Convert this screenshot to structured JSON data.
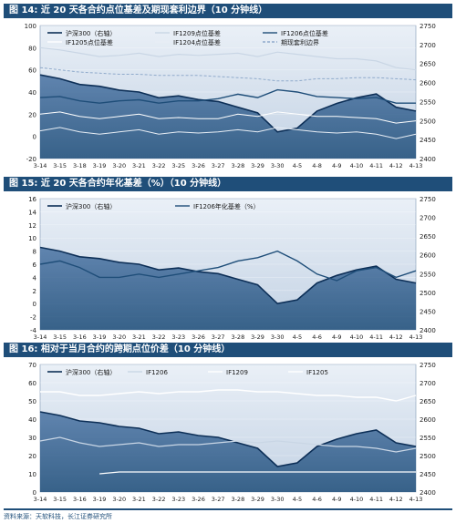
{
  "chart_data": [
    {
      "type": "line",
      "title": "图 14: 近 20 天各合约点位基差及期现套利边界（10 分钟线）",
      "ylim": [
        -20,
        100
      ],
      "yticks": [
        "100",
        "80",
        "60",
        "40",
        "20",
        "0",
        "-20"
      ],
      "y2lim": [
        2400,
        2750
      ],
      "y2ticks": [
        "2750",
        "2700",
        "2650",
        "2600",
        "2550",
        "2500",
        "2450",
        "2400"
      ],
      "categories": [
        "3-14",
        "3-15",
        "3-18",
        "3-19",
        "3-20",
        "3-21",
        "3-22",
        "3-25",
        "3-26",
        "3-27",
        "3-28",
        "3-29",
        "3-30",
        "4-5",
        "4-8",
        "4-9",
        "4-10",
        "4-11",
        "4-12",
        "4-13"
      ],
      "legend": [
        "沪深300（右轴）",
        "IF1209点位基差",
        "IF1206点位基差",
        "IF1205点位基差",
        "IF1204点位基差",
        "期现套利边界"
      ],
      "series": [
        {
          "name": "沪深300（右轴）",
          "axis": "right",
          "values": [
            2620,
            2610,
            2595,
            2590,
            2580,
            2575,
            2560,
            2565,
            2555,
            2550,
            2535,
            2520,
            2470,
            2480,
            2525,
            2545,
            2560,
            2570,
            2535,
            2525
          ]
        },
        {
          "name": "IF1209点位基差",
          "axis": "left",
          "values": [
            80,
            78,
            75,
            72,
            73,
            75,
            72,
            74,
            73,
            74,
            75,
            72,
            76,
            74,
            72,
            70,
            70,
            68,
            62,
            60
          ]
        },
        {
          "name": "IF1206点位基差",
          "axis": "left",
          "values": [
            35,
            36,
            32,
            30,
            32,
            33,
            30,
            32,
            32,
            34,
            38,
            35,
            42,
            40,
            36,
            35,
            34,
            35,
            30,
            30
          ]
        },
        {
          "name": "IF1205点位基差",
          "axis": "left",
          "values": [
            20,
            22,
            18,
            16,
            18,
            20,
            16,
            17,
            16,
            16,
            20,
            18,
            22,
            20,
            18,
            18,
            17,
            16,
            12,
            14
          ]
        },
        {
          "name": "IF1204点位基差",
          "axis": "left",
          "values": [
            5,
            8,
            4,
            2,
            4,
            6,
            2,
            4,
            3,
            4,
            6,
            4,
            8,
            6,
            4,
            3,
            4,
            2,
            -2,
            2
          ]
        },
        {
          "name": "期现套利边界",
          "axis": "left",
          "values": [
            62,
            60,
            58,
            57,
            56,
            56,
            55,
            55,
            55,
            54,
            53,
            52,
            50,
            50,
            52,
            52,
            53,
            53,
            52,
            51
          ]
        }
      ]
    },
    {
      "type": "line",
      "title": "图 15: 近 20 天各合约年化基差（%）（10 分钟线）",
      "ylim": [
        -4,
        16
      ],
      "yticks": [
        "16",
        "14",
        "12",
        "10",
        "8",
        "6",
        "4",
        "2",
        "0",
        "-2",
        "-4"
      ],
      "y2lim": [
        2400,
        2750
      ],
      "y2ticks": [
        "2750",
        "2700",
        "2650",
        "2600",
        "2550",
        "2500",
        "2450",
        "2400"
      ],
      "categories": [
        "3-14",
        "3-15",
        "3-16",
        "3-19",
        "3-20",
        "3-21",
        "3-22",
        "3-23",
        "3-26",
        "3-27",
        "3-28",
        "3-29",
        "3-30",
        "4-5",
        "4-6",
        "4-9",
        "4-10",
        "4-11",
        "4-12",
        "4-13"
      ],
      "legend": [
        "沪深300（右轴）",
        "IF1206年化基差（%）"
      ],
      "series": [
        {
          "name": "沪深300（右轴）",
          "axis": "right",
          "values": [
            2620,
            2610,
            2595,
            2590,
            2580,
            2575,
            2560,
            2565,
            2555,
            2550,
            2535,
            2520,
            2470,
            2480,
            2525,
            2545,
            2560,
            2570,
            2535,
            2525
          ]
        },
        {
          "name": "IF1206年化基差（%）",
          "axis": "left",
          "values": [
            6,
            6.5,
            5.5,
            4,
            4,
            4.5,
            4,
            4.5,
            5,
            5.5,
            6.5,
            7,
            8,
            6.5,
            4.5,
            3.5,
            5,
            5.5,
            4,
            5
          ]
        }
      ]
    },
    {
      "type": "line",
      "title": "图 16: 相对于当月合约的跨期点位价差（10 分钟线）",
      "ylim": [
        0,
        70
      ],
      "yticks": [
        "70",
        "60",
        "50",
        "40",
        "30",
        "20",
        "10",
        "0"
      ],
      "y2lim": [
        2400,
        2750
      ],
      "y2ticks": [
        "2750",
        "2700",
        "2650",
        "2600",
        "2550",
        "2500",
        "2450",
        "2400"
      ],
      "categories": [
        "3-14",
        "3-15",
        "3-16",
        "3-19",
        "3-20",
        "3-21",
        "3-22",
        "3-23",
        "3-26",
        "3-27",
        "3-28",
        "3-29",
        "3-30",
        "4-5",
        "4-6",
        "4-9",
        "4-10",
        "4-11",
        "4-12",
        "4-13"
      ],
      "legend": [
        "沪深300（右轴）",
        "IF1206",
        "IF1209",
        "IF1205"
      ],
      "series": [
        {
          "name": "沪深300（右轴）",
          "axis": "right",
          "values": [
            2620,
            2610,
            2595,
            2590,
            2580,
            2575,
            2560,
            2565,
            2555,
            2550,
            2535,
            2520,
            2470,
            2480,
            2525,
            2545,
            2560,
            2570,
            2535,
            2525
          ]
        },
        {
          "name": "IF1206",
          "axis": "left",
          "values": [
            28,
            30,
            27,
            25,
            26,
            27,
            25,
            26,
            26,
            27,
            28,
            27,
            28,
            27,
            26,
            25,
            25,
            24,
            22,
            24
          ]
        },
        {
          "name": "IF1209",
          "axis": "left",
          "values": [
            55,
            55,
            53,
            53,
            54,
            55,
            54,
            55,
            55,
            56,
            56,
            55,
            55,
            54,
            53,
            53,
            52,
            52,
            50,
            53
          ]
        },
        {
          "name": "IF1205",
          "axis": "left",
          "values": [
            null,
            null,
            null,
            10,
            11,
            11,
            11,
            11,
            11,
            11,
            11,
            11,
            11,
            11,
            11,
            11,
            11,
            11,
            11,
            11
          ]
        }
      ]
    }
  ],
  "footer": "资料来源：天软科技，长江证券研究所"
}
